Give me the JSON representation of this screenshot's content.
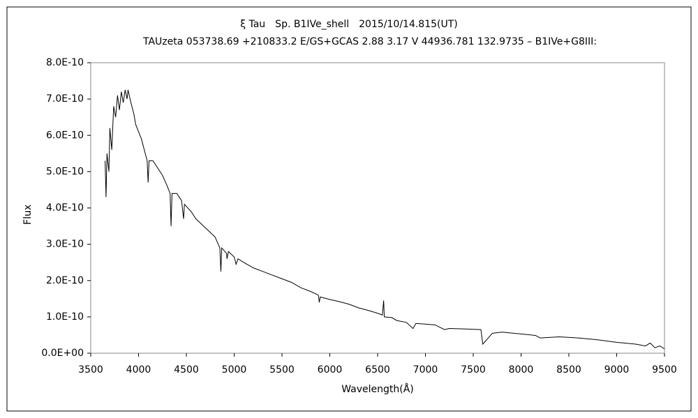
{
  "chart_data": {
    "type": "line",
    "title": "ξ Tau　Sp. B1IVe_shell　2015/10/14.815(UT)",
    "subtitle": "TAUzeta 053738.69 +210833.2 E/GS+GCAS 2.88 3.17 V 44936.781 132.9735 – B1IVe+G8III:",
    "x_label": "Wavelength(Å)",
    "y_label": "Flux",
    "x": [
      3650,
      3660,
      3670,
      3690,
      3700,
      3720,
      3740,
      3760,
      3780,
      3800,
      3820,
      3840,
      3860,
      3880,
      3890,
      3920,
      3950,
      3970,
      4000,
      4030,
      4060,
      4090,
      4100,
      4110,
      4150,
      4200,
      4250,
      4300,
      4330,
      4340,
      4350,
      4400,
      4450,
      4471,
      4480,
      4550,
      4600,
      4700,
      4800,
      4850,
      4861,
      4870,
      4920,
      4925,
      4940,
      5000,
      5020,
      5040,
      5100,
      5200,
      5300,
      5400,
      5500,
      5600,
      5700,
      5800,
      5880,
      5890,
      5900,
      6000,
      6100,
      6200,
      6300,
      6400,
      6500,
      6550,
      6563,
      6570,
      6650,
      6700,
      6800,
      6870,
      6900,
      7000,
      7100,
      7200,
      7250,
      7400,
      7580,
      7600,
      7650,
      7700,
      7800,
      8000,
      8150,
      8200,
      8400,
      8600,
      8800,
      9000,
      9200,
      9300,
      9350,
      9400,
      9450,
      9500
    ],
    "series": [
      {
        "color": "#000000",
        "values": [
          5.3e-10,
          4.3e-10,
          5.5e-10,
          5e-10,
          6.2e-10,
          5.6e-10,
          6.8e-10,
          6.5e-10,
          7.1e-10,
          6.7e-10,
          7.2e-10,
          6.9e-10,
          7.25e-10,
          7e-10,
          7.25e-10,
          6.9e-10,
          6.6e-10,
          6.3e-10,
          6.1e-10,
          5.9e-10,
          5.6e-10,
          5.3e-10,
          4.7e-10,
          5.3e-10,
          5.3e-10,
          5.1e-10,
          4.9e-10,
          4.6e-10,
          4.4e-10,
          3.5e-10,
          4.4e-10,
          4.4e-10,
          4.2e-10,
          3.7e-10,
          4.1e-10,
          3.9e-10,
          3.7e-10,
          3.45e-10,
          3.2e-10,
          2.9e-10,
          2.25e-10,
          2.9e-10,
          2.75e-10,
          2.6e-10,
          2.8e-10,
          2.65e-10,
          2.45e-10,
          2.6e-10,
          2.5e-10,
          2.35e-10,
          2.25e-10,
          2.15e-10,
          2.05e-10,
          1.95e-10,
          1.8e-10,
          1.7e-10,
          1.6e-10,
          1.4e-10,
          1.55e-10,
          1.48e-10,
          1.42e-10,
          1.35e-10,
          1.25e-10,
          1.18e-10,
          1.1e-10,
          1.05e-10,
          1.45e-10,
          1e-10,
          9.8e-11,
          9e-11,
          8.5e-11,
          6.8e-11,
          8.2e-11,
          8e-11,
          7.8e-11,
          6.5e-11,
          6.8e-11,
          6.7e-11,
          6.5e-11,
          2.5e-11,
          4e-11,
          5.5e-11,
          5.8e-11,
          5.3e-11,
          4.9e-11,
          4.2e-11,
          4.5e-11,
          4.2e-11,
          3.7e-11,
          3e-11,
          2.5e-11,
          2e-11,
          2.8e-11,
          1.5e-11,
          2e-11,
          1.2e-11
        ]
      }
    ],
    "xlim": [
      3500,
      9500
    ],
    "xticks": [
      3500,
      4000,
      4500,
      5000,
      5500,
      6000,
      6500,
      7000,
      7500,
      8000,
      8500,
      9000,
      9500
    ],
    "ylim": [
      0,
      8e-10
    ],
    "yticks": [
      {
        "value": 0,
        "label": "0.0E+00"
      },
      {
        "value": 1e-10,
        "label": "1.0E-10"
      },
      {
        "value": 2e-10,
        "label": "2.0E-10"
      },
      {
        "value": 3e-10,
        "label": "3.0E-10"
      },
      {
        "value": 4e-10,
        "label": "4.0E-10"
      },
      {
        "value": 5e-10,
        "label": "5.0E-10"
      },
      {
        "value": 6e-10,
        "label": "6.0E-10"
      },
      {
        "value": 7e-10,
        "label": "7.0E-10"
      },
      {
        "value": 8e-10,
        "label": "8.0E-10"
      }
    ],
    "grid": false
  }
}
